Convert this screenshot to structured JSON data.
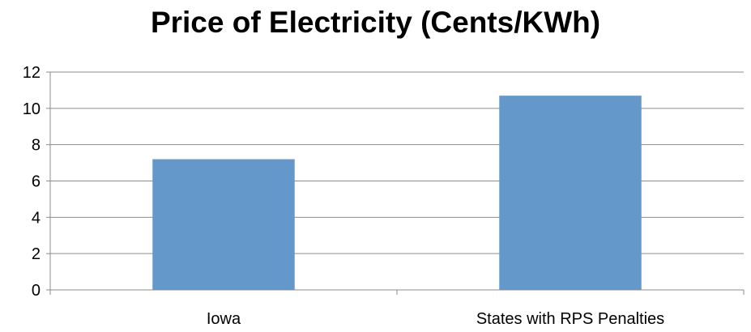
{
  "chart_data": {
    "type": "bar",
    "title": "Price of Electricity (Cents/KWh)",
    "categories": [
      "Iowa",
      "States with RPS Penalties"
    ],
    "values": [
      7.2,
      10.7
    ],
    "xlabel": "",
    "ylabel": "",
    "ylim": [
      0,
      12
    ],
    "yticks": [
      "0",
      "2",
      "4",
      "6",
      "8",
      "10",
      "12"
    ],
    "grid": true,
    "legend": "none",
    "bar_color": "#6497CA",
    "grid_color": "#8c8c8c"
  }
}
